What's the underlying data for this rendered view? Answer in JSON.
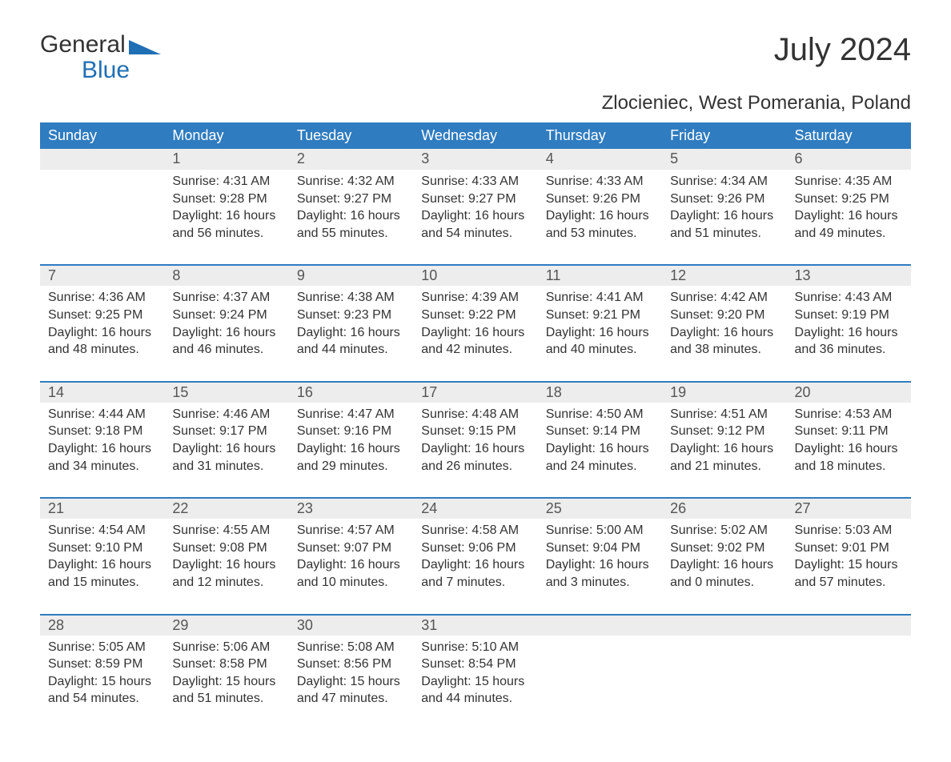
{
  "logo": {
    "text1": "General",
    "text2": "Blue"
  },
  "title": "July 2024",
  "location": "Zlocieniec, West Pomerania, Poland",
  "colors": {
    "header_bg": "#2f7cc0",
    "header_fg": "#ffffff",
    "daynum_bg": "#ededed",
    "row_border": "#2f7cc0",
    "logo_accent": "#1f6fb5",
    "text": "#333333",
    "page_bg": "#ffffff"
  },
  "fonts": {
    "title_size_pt": 30,
    "location_size_pt": 18,
    "header_size_pt": 13,
    "body_size_pt": 12
  },
  "day_labels": [
    "Sunday",
    "Monday",
    "Tuesday",
    "Wednesday",
    "Thursday",
    "Friday",
    "Saturday"
  ],
  "weeks": [
    [
      null,
      {
        "n": "1",
        "sunrise": "Sunrise: 4:31 AM",
        "sunset": "Sunset: 9:28 PM",
        "dl1": "Daylight: 16 hours",
        "dl2": "and 56 minutes."
      },
      {
        "n": "2",
        "sunrise": "Sunrise: 4:32 AM",
        "sunset": "Sunset: 9:27 PM",
        "dl1": "Daylight: 16 hours",
        "dl2": "and 55 minutes."
      },
      {
        "n": "3",
        "sunrise": "Sunrise: 4:33 AM",
        "sunset": "Sunset: 9:27 PM",
        "dl1": "Daylight: 16 hours",
        "dl2": "and 54 minutes."
      },
      {
        "n": "4",
        "sunrise": "Sunrise: 4:33 AM",
        "sunset": "Sunset: 9:26 PM",
        "dl1": "Daylight: 16 hours",
        "dl2": "and 53 minutes."
      },
      {
        "n": "5",
        "sunrise": "Sunrise: 4:34 AM",
        "sunset": "Sunset: 9:26 PM",
        "dl1": "Daylight: 16 hours",
        "dl2": "and 51 minutes."
      },
      {
        "n": "6",
        "sunrise": "Sunrise: 4:35 AM",
        "sunset": "Sunset: 9:25 PM",
        "dl1": "Daylight: 16 hours",
        "dl2": "and 49 minutes."
      }
    ],
    [
      {
        "n": "7",
        "sunrise": "Sunrise: 4:36 AM",
        "sunset": "Sunset: 9:25 PM",
        "dl1": "Daylight: 16 hours",
        "dl2": "and 48 minutes."
      },
      {
        "n": "8",
        "sunrise": "Sunrise: 4:37 AM",
        "sunset": "Sunset: 9:24 PM",
        "dl1": "Daylight: 16 hours",
        "dl2": "and 46 minutes."
      },
      {
        "n": "9",
        "sunrise": "Sunrise: 4:38 AM",
        "sunset": "Sunset: 9:23 PM",
        "dl1": "Daylight: 16 hours",
        "dl2": "and 44 minutes."
      },
      {
        "n": "10",
        "sunrise": "Sunrise: 4:39 AM",
        "sunset": "Sunset: 9:22 PM",
        "dl1": "Daylight: 16 hours",
        "dl2": "and 42 minutes."
      },
      {
        "n": "11",
        "sunrise": "Sunrise: 4:41 AM",
        "sunset": "Sunset: 9:21 PM",
        "dl1": "Daylight: 16 hours",
        "dl2": "and 40 minutes."
      },
      {
        "n": "12",
        "sunrise": "Sunrise: 4:42 AM",
        "sunset": "Sunset: 9:20 PM",
        "dl1": "Daylight: 16 hours",
        "dl2": "and 38 minutes."
      },
      {
        "n": "13",
        "sunrise": "Sunrise: 4:43 AM",
        "sunset": "Sunset: 9:19 PM",
        "dl1": "Daylight: 16 hours",
        "dl2": "and 36 minutes."
      }
    ],
    [
      {
        "n": "14",
        "sunrise": "Sunrise: 4:44 AM",
        "sunset": "Sunset: 9:18 PM",
        "dl1": "Daylight: 16 hours",
        "dl2": "and 34 minutes."
      },
      {
        "n": "15",
        "sunrise": "Sunrise: 4:46 AM",
        "sunset": "Sunset: 9:17 PM",
        "dl1": "Daylight: 16 hours",
        "dl2": "and 31 minutes."
      },
      {
        "n": "16",
        "sunrise": "Sunrise: 4:47 AM",
        "sunset": "Sunset: 9:16 PM",
        "dl1": "Daylight: 16 hours",
        "dl2": "and 29 minutes."
      },
      {
        "n": "17",
        "sunrise": "Sunrise: 4:48 AM",
        "sunset": "Sunset: 9:15 PM",
        "dl1": "Daylight: 16 hours",
        "dl2": "and 26 minutes."
      },
      {
        "n": "18",
        "sunrise": "Sunrise: 4:50 AM",
        "sunset": "Sunset: 9:14 PM",
        "dl1": "Daylight: 16 hours",
        "dl2": "and 24 minutes."
      },
      {
        "n": "19",
        "sunrise": "Sunrise: 4:51 AM",
        "sunset": "Sunset: 9:12 PM",
        "dl1": "Daylight: 16 hours",
        "dl2": "and 21 minutes."
      },
      {
        "n": "20",
        "sunrise": "Sunrise: 4:53 AM",
        "sunset": "Sunset: 9:11 PM",
        "dl1": "Daylight: 16 hours",
        "dl2": "and 18 minutes."
      }
    ],
    [
      {
        "n": "21",
        "sunrise": "Sunrise: 4:54 AM",
        "sunset": "Sunset: 9:10 PM",
        "dl1": "Daylight: 16 hours",
        "dl2": "and 15 minutes."
      },
      {
        "n": "22",
        "sunrise": "Sunrise: 4:55 AM",
        "sunset": "Sunset: 9:08 PM",
        "dl1": "Daylight: 16 hours",
        "dl2": "and 12 minutes."
      },
      {
        "n": "23",
        "sunrise": "Sunrise: 4:57 AM",
        "sunset": "Sunset: 9:07 PM",
        "dl1": "Daylight: 16 hours",
        "dl2": "and 10 minutes."
      },
      {
        "n": "24",
        "sunrise": "Sunrise: 4:58 AM",
        "sunset": "Sunset: 9:06 PM",
        "dl1": "Daylight: 16 hours",
        "dl2": "and 7 minutes."
      },
      {
        "n": "25",
        "sunrise": "Sunrise: 5:00 AM",
        "sunset": "Sunset: 9:04 PM",
        "dl1": "Daylight: 16 hours",
        "dl2": "and 3 minutes."
      },
      {
        "n": "26",
        "sunrise": "Sunrise: 5:02 AM",
        "sunset": "Sunset: 9:02 PM",
        "dl1": "Daylight: 16 hours",
        "dl2": "and 0 minutes."
      },
      {
        "n": "27",
        "sunrise": "Sunrise: 5:03 AM",
        "sunset": "Sunset: 9:01 PM",
        "dl1": "Daylight: 15 hours",
        "dl2": "and 57 minutes."
      }
    ],
    [
      {
        "n": "28",
        "sunrise": "Sunrise: 5:05 AM",
        "sunset": "Sunset: 8:59 PM",
        "dl1": "Daylight: 15 hours",
        "dl2": "and 54 minutes."
      },
      {
        "n": "29",
        "sunrise": "Sunrise: 5:06 AM",
        "sunset": "Sunset: 8:58 PM",
        "dl1": "Daylight: 15 hours",
        "dl2": "and 51 minutes."
      },
      {
        "n": "30",
        "sunrise": "Sunrise: 5:08 AM",
        "sunset": "Sunset: 8:56 PM",
        "dl1": "Daylight: 15 hours",
        "dl2": "and 47 minutes."
      },
      {
        "n": "31",
        "sunrise": "Sunrise: 5:10 AM",
        "sunset": "Sunset: 8:54 PM",
        "dl1": "Daylight: 15 hours",
        "dl2": "and 44 minutes."
      },
      null,
      null,
      null
    ]
  ]
}
